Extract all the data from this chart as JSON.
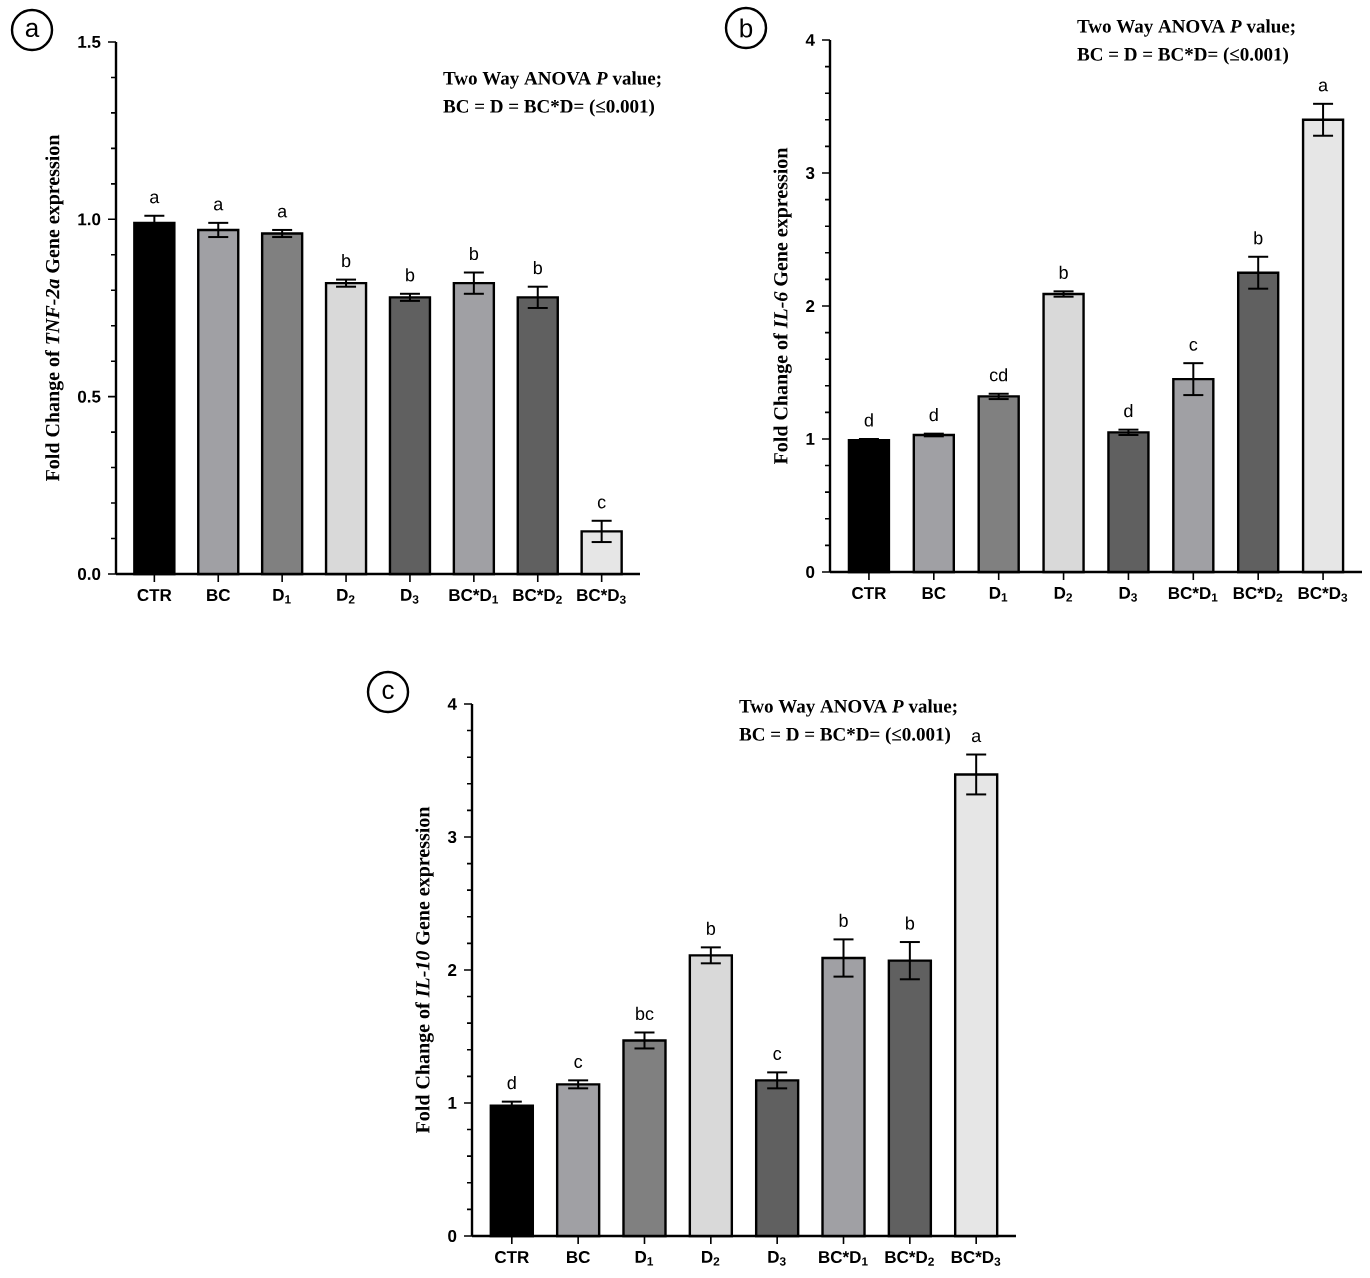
{
  "chart_data": [
    {
      "type": "bar",
      "ylabel": "Fold Change of *TNF-2a* Gene expression",
      "annotations": [
        "a",
        "Two Way ANOVA *P* value;",
        "BC = D = BC*D= (≤0.001)"
      ],
      "categories": [
        "CTR",
        "BC",
        "D$_{1}$",
        "D$_{2}$",
        "D$_{3}$",
        "BC*D$_{1}$",
        "BC*D$_{2}$",
        "BC*D$_{3}$"
      ],
      "values": [
        0.99,
        0.97,
        0.96,
        0.82,
        0.78,
        0.82,
        0.78,
        0.12
      ],
      "errors": [
        0.02,
        0.02,
        0.01,
        0.01,
        0.01,
        0.03,
        0.03,
        0.03
      ],
      "value_labels": [
        "a",
        "a",
        "a",
        "b",
        "b",
        "b",
        "b",
        "c"
      ],
      "colors": [
        "#000000",
        "#a0a0a4",
        "#808080",
        "#d9d9d9",
        "#606060",
        "#a0a0a4",
        "#606060",
        "#e6e6e6"
      ],
      "ylim": [
        0,
        1.5
      ],
      "yticks": [
        {
          "value": 0,
          "label": "0.0"
        },
        0.5,
        {
          "value": 1,
          "label": "1.0"
        },
        1.5
      ]
    },
    {
      "type": "bar",
      "ylabel": "Fold Change of *IL-6* Gene expression",
      "annotations": [
        "b",
        "Two Way ANOVA *P* value;",
        "BC = D = BC*D= (≤0.001)"
      ],
      "categories": [
        "CTR",
        "BC",
        "D$_{1}$",
        "D$_{2}$",
        "D$_{3}$",
        "BC*D$_{1}$",
        "BC*D$_{2}$",
        "BC*D$_{3}$"
      ],
      "values": [
        0.99,
        1.03,
        1.32,
        2.09,
        1.05,
        1.45,
        2.25,
        3.4
      ],
      "errors": [
        0.01,
        0.01,
        0.02,
        0.02,
        0.02,
        0.12,
        0.12,
        0.12
      ],
      "value_labels": [
        "d",
        "d",
        "cd",
        "b",
        "d",
        "c",
        "b",
        "a"
      ],
      "colors": [
        "#000000",
        "#a0a0a4",
        "#808080",
        "#d9d9d9",
        "#606060",
        "#a0a0a4",
        "#606060",
        "#e6e6e6"
      ],
      "ylim": [
        0,
        4
      ],
      "yticks": [
        0,
        1,
        2,
        3,
        4
      ]
    },
    {
      "type": "bar",
      "ylabel": "Fold Change of *IL-10* Gene expression",
      "annotations": [
        "c",
        "Two Way ANOVA *P* value;",
        "BC = D = BC*D= (≤0.001)"
      ],
      "categories": [
        "CTR",
        "BC",
        "D$_{1}$",
        "D$_{2}$",
        "D$_{3}$",
        "BC*D$_{1}$",
        "BC*D$_{2}$",
        "BC*D$_{3}$"
      ],
      "values": [
        0.98,
        1.14,
        1.47,
        2.11,
        1.17,
        2.09,
        2.07,
        3.47
      ],
      "errors": [
        0.03,
        0.03,
        0.06,
        0.06,
        0.06,
        0.14,
        0.14,
        0.15
      ],
      "value_labels": [
        "d",
        "c",
        "bc",
        "b",
        "c",
        "b",
        "b",
        "a"
      ],
      "colors": [
        "#000000",
        "#a0a0a4",
        "#808080",
        "#d9d9d9",
        "#606060",
        "#a0a0a4",
        "#606060",
        "#e6e6e6"
      ],
      "ylim": [
        0,
        4
      ],
      "yticks": [
        0,
        1,
        2,
        3,
        4
      ]
    }
  ]
}
